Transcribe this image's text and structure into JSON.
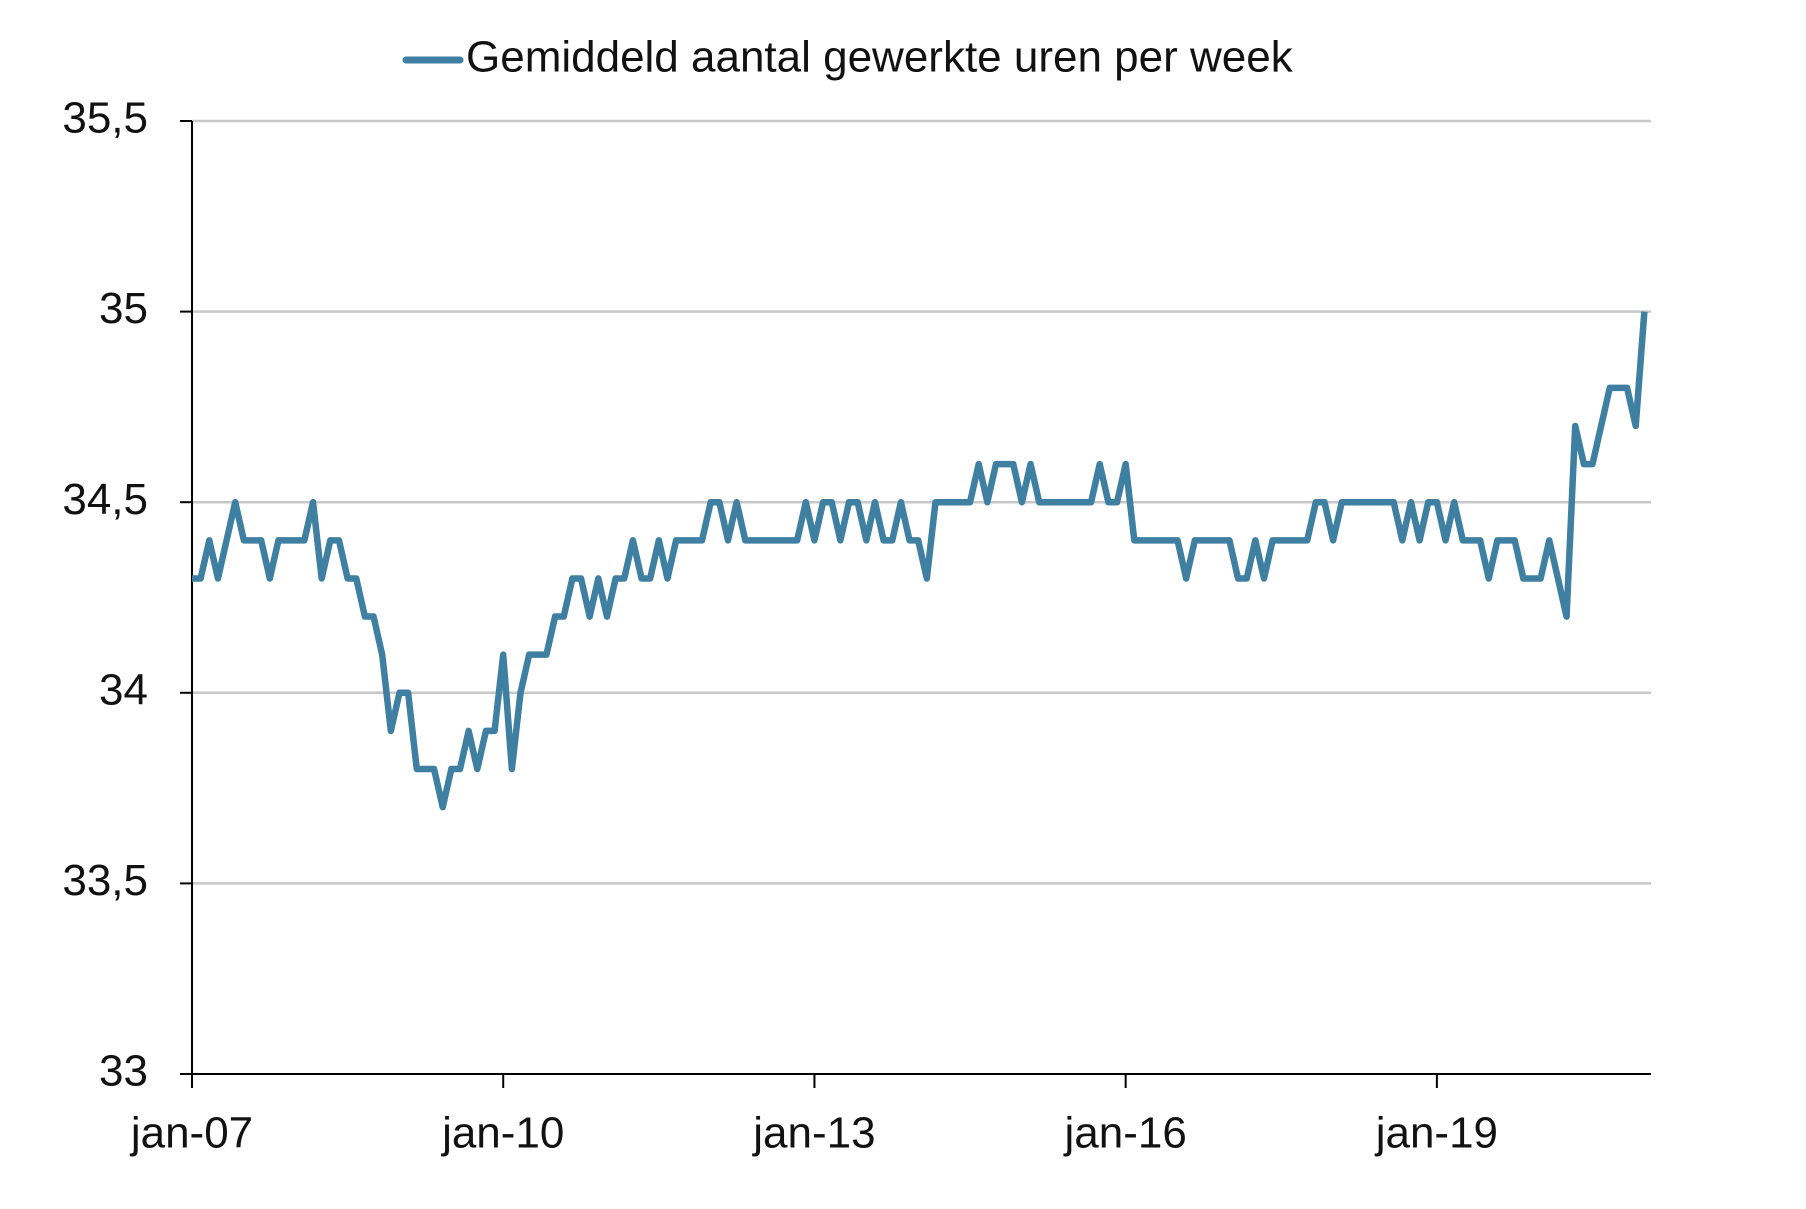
{
  "chart_data": {
    "type": "line",
    "categories": [
      "jan-07",
      null,
      null,
      null,
      null,
      null,
      null,
      null,
      null,
      null,
      null,
      null,
      null,
      null,
      null,
      null,
      null,
      null,
      null,
      null,
      null,
      null,
      null,
      null,
      null,
      null,
      null,
      null,
      null,
      null,
      null,
      null,
      null,
      null,
      null,
      null,
      "jan-10",
      null,
      null,
      null,
      null,
      null,
      null,
      null,
      null,
      null,
      null,
      null,
      null,
      null,
      null,
      null,
      null,
      null,
      null,
      null,
      null,
      null,
      null,
      null,
      null,
      null,
      null,
      null,
      null,
      null,
      null,
      null,
      null,
      null,
      null,
      null,
      "jan-13",
      null,
      null,
      null,
      null,
      null,
      null,
      null,
      null,
      null,
      null,
      null,
      null,
      null,
      null,
      null,
      null,
      null,
      null,
      null,
      null,
      null,
      null,
      null,
      null,
      null,
      null,
      null,
      null,
      null,
      null,
      null,
      null,
      null,
      null,
      null,
      "jan-16",
      null,
      null,
      null,
      null,
      null,
      null,
      null,
      null,
      null,
      null,
      null,
      null,
      null,
      null,
      null,
      null,
      null,
      null,
      null,
      null,
      null,
      null,
      null,
      null,
      null,
      null,
      null,
      null,
      null,
      null,
      null,
      null,
      null,
      null,
      null,
      "jan-19",
      null,
      null,
      null,
      null,
      null,
      null,
      null,
      null,
      null,
      null,
      null,
      null,
      null,
      null,
      null,
      null,
      null,
      null,
      null,
      null,
      null,
      null,
      null,
      null
    ],
    "series": [
      {
        "name": "Gemiddeld aantal gewerkte uren per week",
        "color": "#3f7fa1",
        "values": [
          34.3,
          34.3,
          34.4,
          34.3,
          34.4,
          34.5,
          34.4,
          34.4,
          34.4,
          34.3,
          34.4,
          34.4,
          34.4,
          34.4,
          34.5,
          34.3,
          34.4,
          34.4,
          34.3,
          34.3,
          34.2,
          34.2,
          34.1,
          33.9,
          34.0,
          34.0,
          33.8,
          33.8,
          33.8,
          33.7,
          33.8,
          33.8,
          33.9,
          33.8,
          33.9,
          33.9,
          34.1,
          33.8,
          34.0,
          34.1,
          34.1,
          34.1,
          34.2,
          34.2,
          34.3,
          34.3,
          34.2,
          34.3,
          34.2,
          34.3,
          34.3,
          34.4,
          34.3,
          34.3,
          34.4,
          34.3,
          34.4,
          34.4,
          34.4,
          34.4,
          34.5,
          34.5,
          34.4,
          34.5,
          34.4,
          34.4,
          34.4,
          34.4,
          34.4,
          34.4,
          34.4,
          34.5,
          34.4,
          34.5,
          34.5,
          34.4,
          34.5,
          34.5,
          34.4,
          34.5,
          34.4,
          34.4,
          34.5,
          34.4,
          34.4,
          34.3,
          34.5,
          34.5,
          34.5,
          34.5,
          34.5,
          34.6,
          34.5,
          34.6,
          34.6,
          34.6,
          34.5,
          34.6,
          34.5,
          34.5,
          34.5,
          34.5,
          34.5,
          34.5,
          34.5,
          34.6,
          34.5,
          34.5,
          34.6,
          34.4,
          34.4,
          34.4,
          34.4,
          34.4,
          34.4,
          34.3,
          34.4,
          34.4,
          34.4,
          34.4,
          34.4,
          34.3,
          34.3,
          34.4,
          34.3,
          34.4,
          34.4,
          34.4,
          34.4,
          34.4,
          34.5,
          34.5,
          34.4,
          34.5,
          34.5,
          34.5,
          34.5,
          34.5,
          34.5,
          34.5,
          34.4,
          34.5,
          34.4,
          34.5,
          34.5,
          34.4,
          34.5,
          34.4,
          34.4,
          34.4,
          34.3,
          34.4,
          34.4,
          34.4,
          34.3,
          34.3,
          34.3,
          34.4,
          34.3,
          34.2,
          34.7,
          34.6,
          34.6,
          34.7,
          34.8,
          34.8,
          34.8,
          34.7,
          35.0
        ]
      }
    ],
    "ylim": [
      33,
      35.5
    ],
    "yticks": [
      33,
      {
        "value": 33.5,
        "label": "33,5"
      },
      34,
      {
        "value": 34.5,
        "label": "34,5"
      },
      35,
      {
        "value": 35.5,
        "label": "35,5"
      }
    ],
    "grid": true,
    "legend": "top"
  }
}
